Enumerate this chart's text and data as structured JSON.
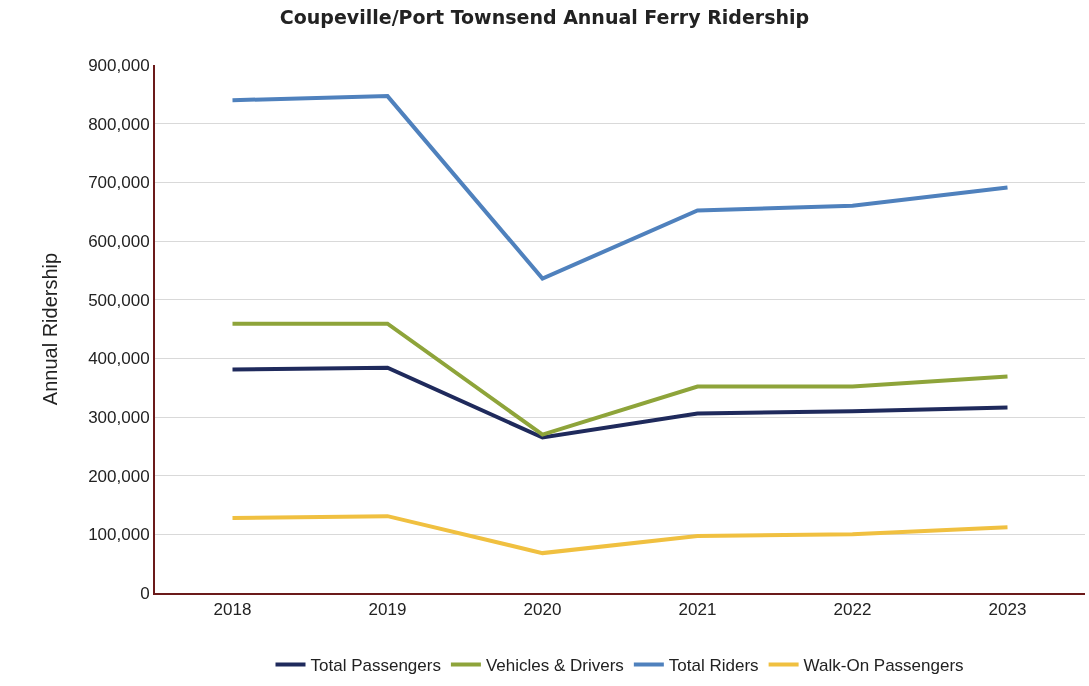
{
  "chart_data": {
    "type": "line",
    "title": "Coupeville/Port Townsend Annual Ferry Ridership",
    "ylabel": "Annual Ridership",
    "categories": [
      "2018",
      "2019",
      "2020",
      "2021",
      "2022",
      "2023"
    ],
    "series": [
      {
        "name": "Total Passengers",
        "color": "#1f2a5c",
        "values": [
          381000,
          384000,
          265000,
          306000,
          310000,
          316000
        ]
      },
      {
        "name": "Vehicles & Drivers",
        "color": "#8ea43a",
        "values": [
          459000,
          459000,
          270000,
          352000,
          352000,
          369000
        ]
      },
      {
        "name": "Total Riders",
        "color": "#4f81bd",
        "values": [
          840000,
          847000,
          536000,
          652000,
          660000,
          691000
        ]
      },
      {
        "name": "Walk-On Passengers",
        "color": "#f0c040",
        "values": [
          128000,
          131000,
          68000,
          97000,
          100000,
          112000
        ]
      }
    ],
    "ylim": [
      0,
      900000
    ],
    "yticks": [
      {
        "value": 0,
        "label": "0"
      },
      {
        "value": 100000,
        "label": "100,000"
      },
      {
        "value": 200000,
        "label": "200,000"
      },
      {
        "value": 300000,
        "label": "300,000"
      },
      {
        "value": 400000,
        "label": "400,000"
      },
      {
        "value": 500000,
        "label": "500,000"
      },
      {
        "value": 600000,
        "label": "600,000"
      },
      {
        "value": 700000,
        "label": "700,000"
      },
      {
        "value": 800000,
        "label": "800,000"
      },
      {
        "value": 900000,
        "label": "900,000"
      }
    ],
    "grid": "y",
    "legend": "bottom",
    "marker": "none",
    "line_style": "solid"
  }
}
